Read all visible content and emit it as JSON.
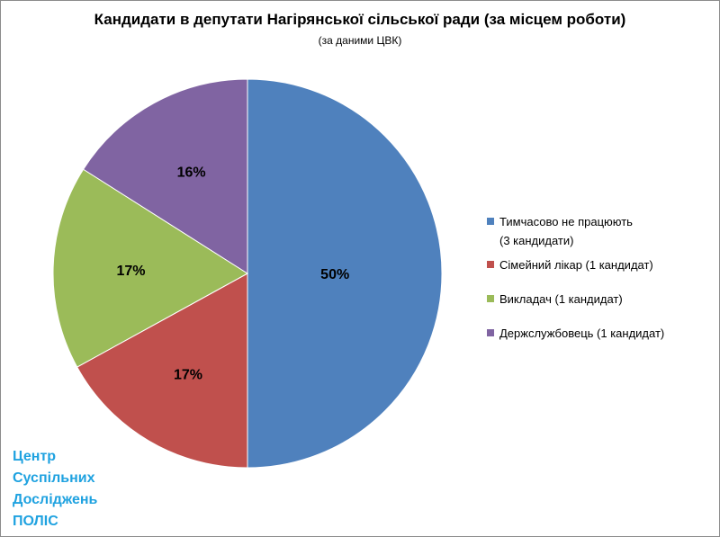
{
  "chart_data": {
    "type": "pie",
    "title": "Кандидати в депутати Нагірянської сільської ради (за місцем роботи)",
    "subtitle": "(за даними ЦВК)",
    "slices": [
      {
        "label": "Тимчасово не працюють (3 кандидати)",
        "legend_lines": [
          "Тимчасово не працюють",
          "(3 кандидати)"
        ],
        "value": 50,
        "display": "50%",
        "color": "#4f81bd"
      },
      {
        "label": "Сімейний лікар (1 кандидат)",
        "legend_lines": [
          "Сімейний лікар (1 кандидат)"
        ],
        "value": 17,
        "display": "17%",
        "color": "#c0504d"
      },
      {
        "label": "Викладач (1 кандидат)",
        "legend_lines": [
          "Викладач (1 кандидат)"
        ],
        "value": 17,
        "display": "17%",
        "color": "#9bbb59"
      },
      {
        "label": "Держслужбовець (1 кандидат)",
        "legend_lines": [
          "Держслужбовець (1 кандидат)"
        ],
        "value": 16,
        "display": "16%",
        "color": "#8064a2"
      }
    ],
    "legend_position": "right"
  },
  "watermark": {
    "lines": [
      "Центр",
      "Суспільних",
      "Досліджень",
      "ПОЛІС"
    ],
    "color": "#1fa2e0"
  }
}
